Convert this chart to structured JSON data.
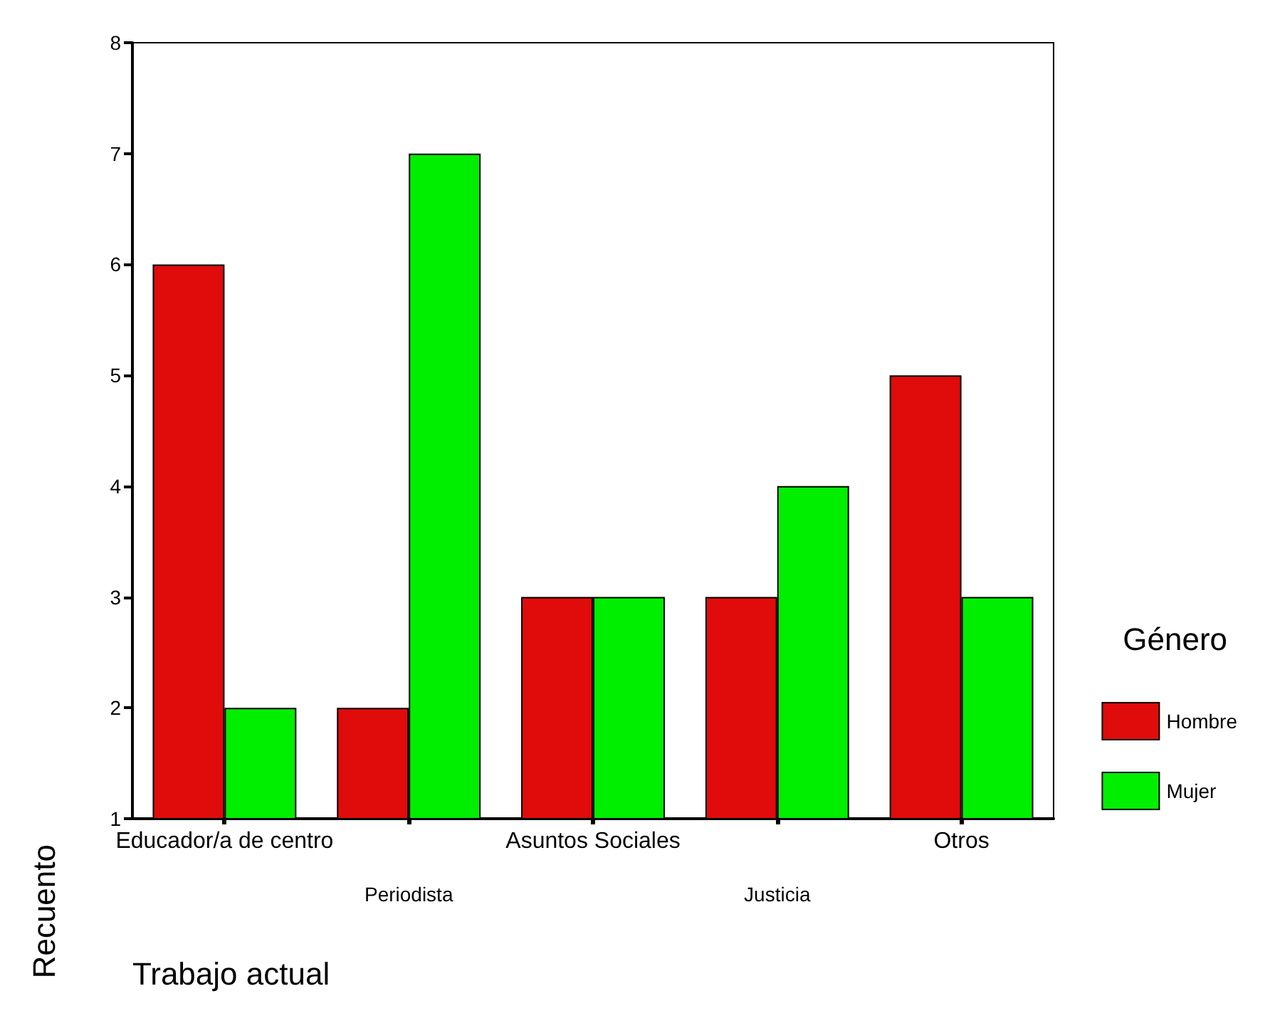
{
  "chart_data": {
    "type": "bar",
    "xlabel": "Trabajo actual",
    "ylabel": "Recuento",
    "legend_title": "Género",
    "categories": [
      "Educador/a de centro",
      "Periodista",
      "Asuntos Sociales",
      "Justicia",
      "Otros"
    ],
    "series": [
      {
        "name": "Hombre",
        "color": "#e00b0b",
        "values": [
          6,
          2,
          3,
          3,
          5
        ]
      },
      {
        "name": "Mujer",
        "color": "#00ee00",
        "values": [
          2,
          7,
          3,
          4,
          3
        ]
      }
    ],
    "ylim": [
      1,
      8
    ],
    "yticks": [
      1,
      2,
      3,
      4,
      5,
      6,
      7,
      8
    ],
    "grid": false,
    "legend": "right"
  }
}
